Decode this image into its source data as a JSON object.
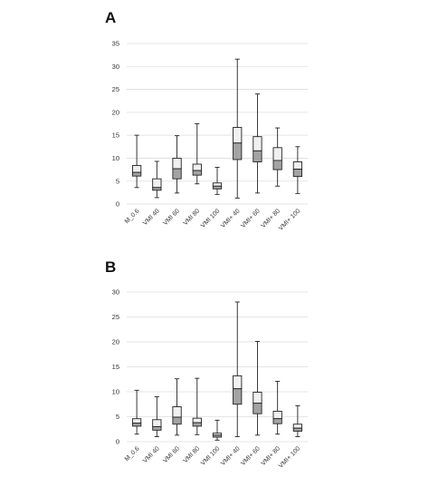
{
  "colors": {
    "upper_box": "#f0f0f0",
    "lower_box": "#a3a3a3",
    "outline": "#222222",
    "gridline": "#dddddd"
  },
  "chart_data": [
    {
      "panel_label": "A",
      "type": "box",
      "categories": [
        "M_0.6",
        "VMI 40",
        "VMI 60",
        "VMI 80",
        "VMI 100",
        "VMI+ 40",
        "VMI+ 60",
        "VMI+ 80",
        "VMI+ 100"
      ],
      "ylim": [
        0,
        35
      ],
      "yticks": [
        0,
        5,
        10,
        15,
        20,
        25,
        30,
        35
      ],
      "grid": true,
      "boxes": [
        {
          "min": 3.6,
          "q1": 6.1,
          "median": 6.9,
          "q3": 8.4,
          "max": 15.0
        },
        {
          "min": 1.4,
          "q1": 3.0,
          "median": 3.6,
          "q3": 5.5,
          "max": 9.3
        },
        {
          "min": 2.4,
          "q1": 5.5,
          "median": 7.7,
          "q3": 10.0,
          "max": 14.9
        },
        {
          "min": 4.4,
          "q1": 6.3,
          "median": 7.3,
          "q3": 8.7,
          "max": 17.5
        },
        {
          "min": 2.1,
          "q1": 3.3,
          "median": 3.9,
          "q3": 4.6,
          "max": 8.0
        },
        {
          "min": 1.3,
          "q1": 9.7,
          "median": 13.3,
          "q3": 16.7,
          "max": 31.6
        },
        {
          "min": 2.4,
          "q1": 9.2,
          "median": 11.6,
          "q3": 14.7,
          "max": 24.0
        },
        {
          "min": 3.9,
          "q1": 7.5,
          "median": 9.5,
          "q3": 12.3,
          "max": 16.6
        },
        {
          "min": 2.3,
          "q1": 6.0,
          "median": 7.6,
          "q3": 9.2,
          "max": 12.5
        }
      ]
    },
    {
      "panel_label": "B",
      "type": "box",
      "categories": [
        "M_0.6",
        "VMI 40",
        "VMI 60",
        "VMI 80",
        "VMI 100",
        "VMI+ 40",
        "VMI+ 60",
        "VMI+ 80",
        "VMI+ 100"
      ],
      "ylim": [
        0,
        30
      ],
      "yticks": [
        0,
        5,
        10,
        15,
        20,
        25,
        30
      ],
      "grid": true,
      "boxes": [
        {
          "min": 1.5,
          "q1": 3.1,
          "median": 3.7,
          "q3": 4.6,
          "max": 10.3
        },
        {
          "min": 1.0,
          "q1": 2.3,
          "median": 3.0,
          "q3": 4.4,
          "max": 9.0
        },
        {
          "min": 1.3,
          "q1": 3.5,
          "median": 4.9,
          "q3": 7.0,
          "max": 12.6
        },
        {
          "min": 1.4,
          "q1": 3.1,
          "median": 3.8,
          "q3": 4.7,
          "max": 12.7
        },
        {
          "min": 0.3,
          "q1": 0.9,
          "median": 1.3,
          "q3": 1.7,
          "max": 4.3
        },
        {
          "min": 1.0,
          "q1": 7.5,
          "median": 10.6,
          "q3": 13.2,
          "max": 28.0
        },
        {
          "min": 1.3,
          "q1": 5.6,
          "median": 7.7,
          "q3": 9.9,
          "max": 20.1
        },
        {
          "min": 1.5,
          "q1": 3.6,
          "median": 4.6,
          "q3": 6.1,
          "max": 12.1
        },
        {
          "min": 1.0,
          "q1": 2.1,
          "median": 2.7,
          "q3": 3.5,
          "max": 7.2
        }
      ]
    }
  ]
}
